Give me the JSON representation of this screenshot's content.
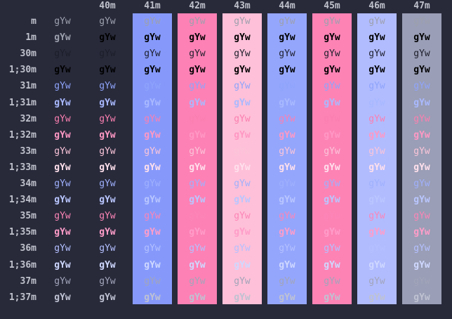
{
  "sample_text": "gYw",
  "row_labels": [
    "m",
    "1m",
    "30m",
    "1;30m",
    "31m",
    "1;31m",
    "32m",
    "1;32m",
    "33m",
    "1;33m",
    "34m",
    "1;34m",
    "35m",
    "1;35m",
    "36m",
    "1;36m",
    "37m",
    "1;37m"
  ],
  "col_labels": [
    "",
    "40m",
    "41m",
    "42m",
    "43m",
    "44m",
    "45m",
    "46m",
    "47m"
  ],
  "colors": {
    "page_background": "#282a3a",
    "label": "#c0c2cc",
    "bg40": "",
    "bg41": "#8699fb",
    "bg42": "#fd81b5",
    "bg43": "#fec0d8",
    "bg44": "#94a6fc",
    "bg45": "#fd83b5",
    "bg46": "#b1bcff",
    "bg47": "#9a9eb6",
    "fg_default": "#9da0ad",
    "fg_default_bold": "#e4e6ee",
    "fg_black": "#1c1e2a",
    "fg_black_bold": "#000000",
    "fg31": "#8fa4fb",
    "fg31_bold": "#a9b9ff",
    "fg32": "#fb7fb0",
    "fg32_bold": "#ff98c4",
    "fg33": "#fbc5d9",
    "fg33_bold": "#ffe0ec",
    "fg34": "#9fb0fd",
    "fg34_bold": "#b9c6ff",
    "fg35": "#fc85b7",
    "fg35_bold": "#ff9dc9",
    "fg36": "#b4c0ff",
    "fg36_bold": "#cfd8ff",
    "fg37": "#a2a5ba",
    "fg37_bold": "#bfc2d2"
  }
}
